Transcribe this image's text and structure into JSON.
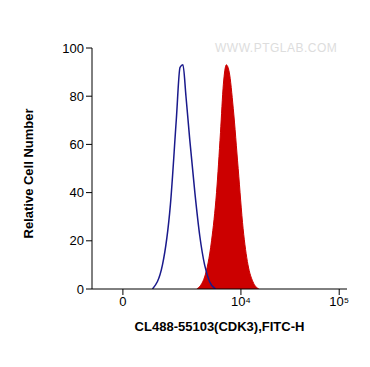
{
  "chart_data": {
    "type": "histogram",
    "x_label": "CL488-55103(CDK3),FITC-H",
    "y_label": "Relative Cell Number",
    "annotation": "WWW.PTGLAB.COM",
    "log": "x",
    "xlim": [
      -1000,
      120000
    ],
    "xticks": [
      0,
      {
        "value": 10000,
        "label": "10⁴"
      },
      {
        "value": 100000,
        "label": "10⁵"
      }
    ],
    "ylim": [
      0,
      100
    ],
    "yticks": [
      0,
      20,
      40,
      60,
      80,
      100
    ],
    "series": [
      {
        "type": "line",
        "color": "#1a1a8c",
        "x": [
          950,
          1350,
          1720,
          2030,
          2250,
          2430,
          2630,
          2900,
          3300,
          3730,
          4200,
          4740,
          5460
        ],
        "values": [
          0,
          10,
          35,
          70,
          92,
          93,
          80,
          62,
          40,
          22,
          10,
          3,
          0
        ]
      },
      {
        "type": "area",
        "color": "#cc0000",
        "x": [
          3460,
          4200,
          4970,
          5600,
          6160,
          6600,
          7080,
          7580,
          8340,
          9370,
          10530,
          11810,
          13260,
          15240
        ],
        "values": [
          0,
          5,
          20,
          40,
          65,
          85,
          93,
          90,
          75,
          50,
          25,
          10,
          3,
          0
        ]
      }
    ]
  }
}
